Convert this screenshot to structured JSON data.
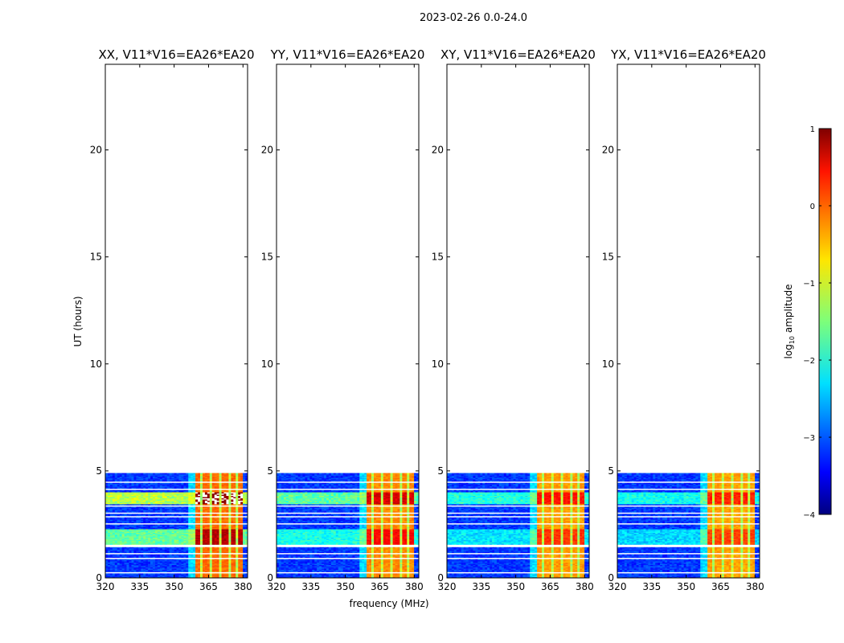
{
  "suptitle": "2023-02-26 0.0-24.0",
  "chart_data": {
    "type": "heatmap",
    "xlabel": "frequency (MHz)",
    "ylabel": "UT (hours)",
    "xlim": [
      320,
      382
    ],
    "ylim": [
      0,
      24
    ],
    "xticks": [
      320,
      335,
      350,
      365,
      380
    ],
    "yticks": [
      0,
      5,
      10,
      15,
      20
    ],
    "data_extent_hours": [
      0,
      4.9
    ],
    "panels": [
      {
        "title": "XX, V11*V16=EA26*EA20",
        "polarization": "XX",
        "band_strength": 1.0
      },
      {
        "title": "YY, V11*V16=EA26*EA20",
        "polarization": "YY",
        "band_strength": 0.75
      },
      {
        "title": "XY, V11*V16=EA26*EA20",
        "polarization": "XY",
        "band_strength": 0.6
      },
      {
        "title": "YX, V11*V16=EA26*EA20",
        "polarization": "YX",
        "band_strength": 0.55
      }
    ],
    "strong_rfi_band_mhz": [
      359,
      380
    ],
    "narrow_gaps_mhz": [
      362,
      366,
      370,
      374,
      377
    ],
    "bright_time_bands_hours": [
      [
        3.45,
        4.0
      ],
      [
        1.55,
        2.3
      ]
    ],
    "gap_hours": [
      0.25,
      0.9,
      1.15,
      1.5,
      2.55,
      2.85,
      3.05,
      3.35,
      4.15,
      4.5
    ],
    "colorbar": {
      "label": "log10 amplitude",
      "range": [
        -4,
        1
      ],
      "ticks": [
        "1",
        "0",
        "−1",
        "−2",
        "−3",
        "−4"
      ],
      "colormap": "jet"
    }
  }
}
